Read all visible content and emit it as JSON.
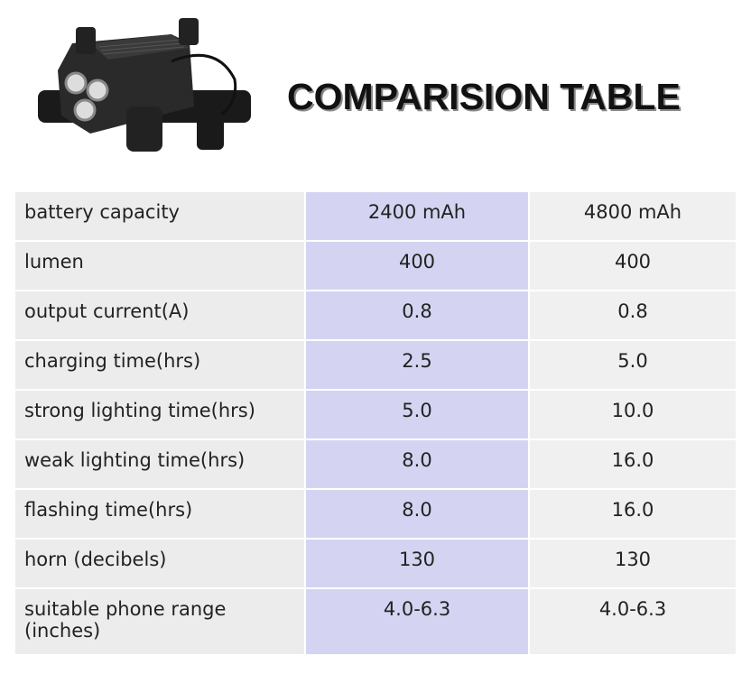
{
  "header": {
    "title": "COMPARISION TABLE"
  },
  "table": {
    "rows": [
      [
        "battery capacity",
        "2400 mAh",
        "4800 mAh"
      ],
      [
        "lumen",
        "400",
        "400"
      ],
      [
        "output current(A)",
        "0.8",
        "0.8"
      ],
      [
        "charging time(hrs)",
        "2.5",
        "5.0"
      ],
      [
        "strong lighting time(hrs)",
        "5.0",
        "10.0"
      ],
      [
        "weak lighting time(hrs)",
        "8.0",
        "16.0"
      ],
      [
        "flashing time(hrs)",
        "8.0",
        "16.0"
      ],
      [
        "horn (decibels)",
        "130",
        "130"
      ],
      [
        "suitable phone range (inches)",
        "4.0-6.3",
        "4.0-6.3"
      ]
    ]
  }
}
